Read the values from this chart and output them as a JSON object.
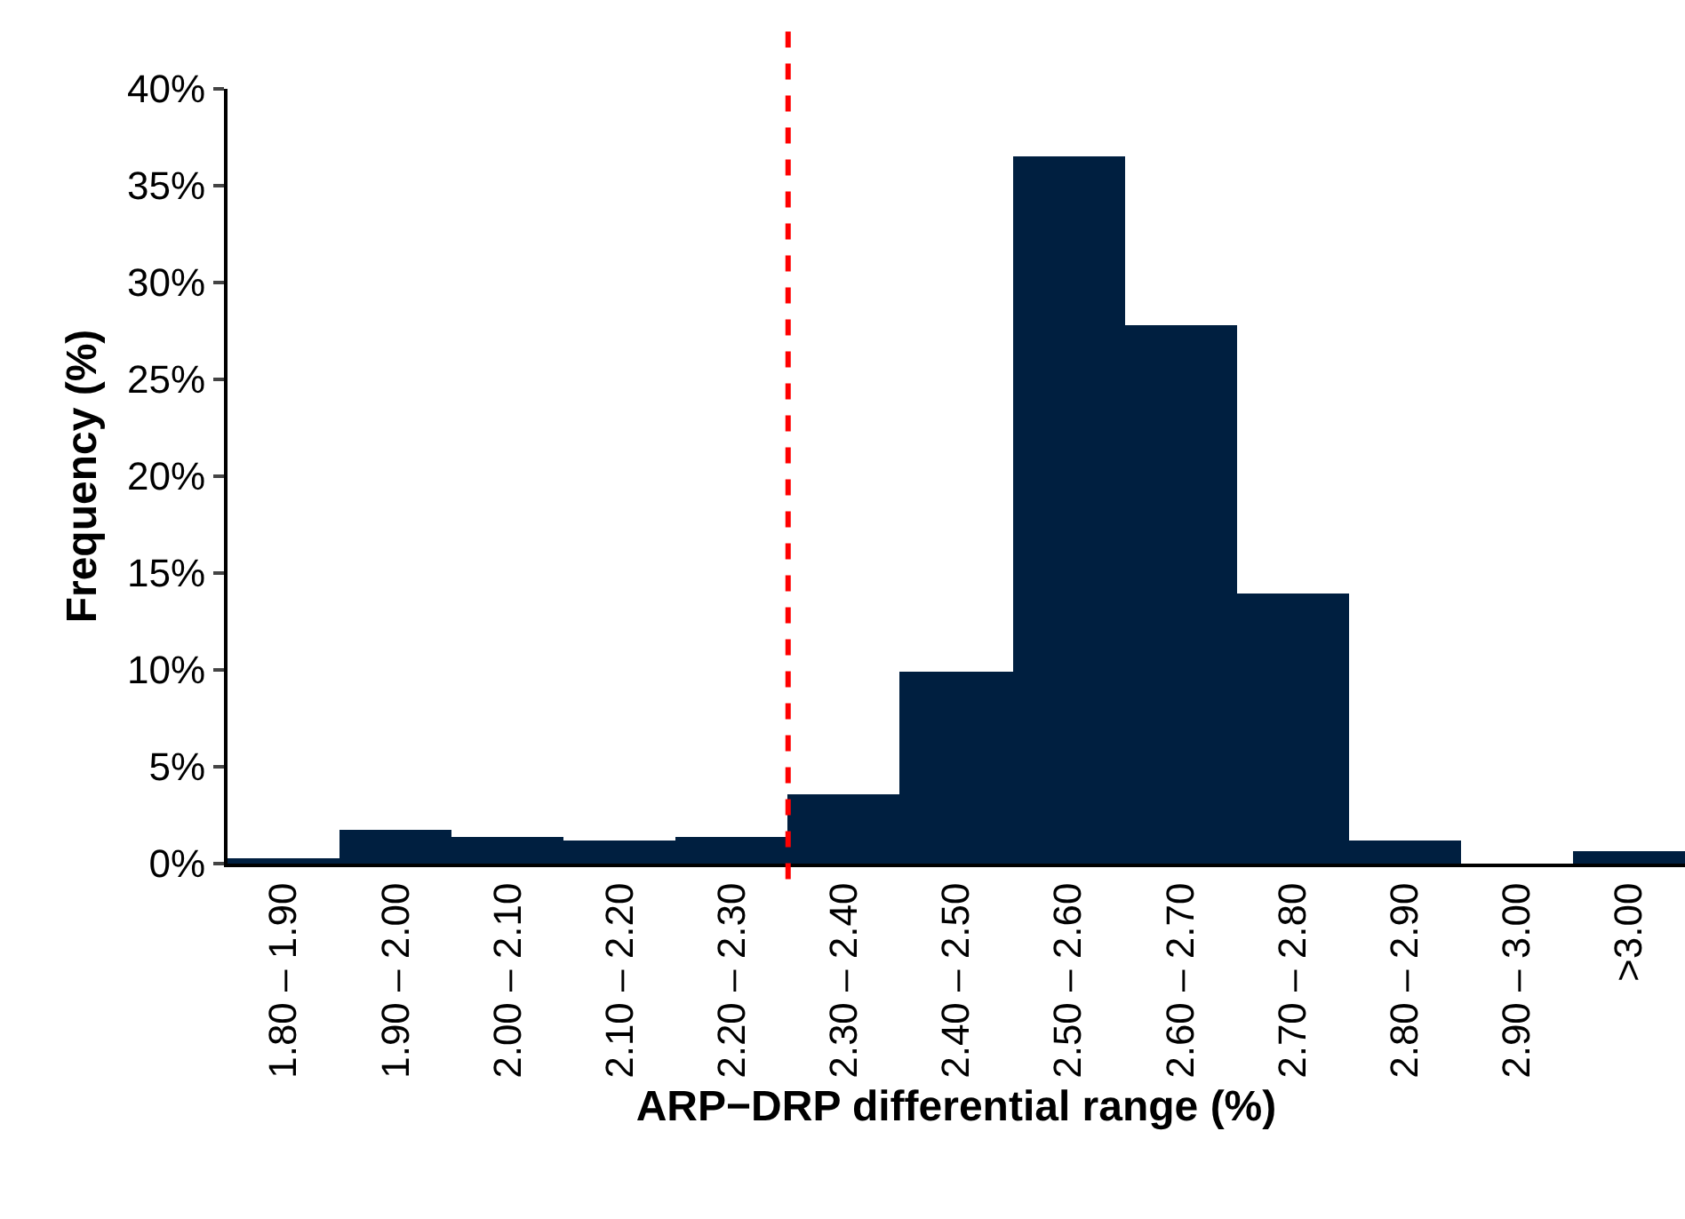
{
  "chart_data": {
    "type": "bar",
    "xlabel": "ARP−DRP differential range (%)",
    "ylabel": "Frequency (%)",
    "categories": [
      "1.80 – 1.90",
      "1.90 – 2.00",
      "2.00 – 2.10",
      "2.10 – 2.20",
      "2.20 – 2.30",
      "2.30 – 2.40",
      "2.40 – 2.50",
      "2.50 – 2.60",
      "2.60 – 2.70",
      "2.70 – 2.80",
      "2.80 – 2.90",
      "2.90 – 3.00",
      ">3.00"
    ],
    "values": [
      0.3,
      1.7,
      1.4,
      1.2,
      1.4,
      3.6,
      9.9,
      36.5,
      27.8,
      13.9,
      1.2,
      0,
      0.6
    ],
    "color": "#001f40",
    "ylim": [
      0,
      40
    ],
    "yticks": [
      {
        "value": 0,
        "label": "0%"
      },
      {
        "value": 5,
        "label": "5%"
      },
      {
        "value": 10,
        "label": "10%"
      },
      {
        "value": 15,
        "label": "15%"
      },
      {
        "value": 20,
        "label": "20%"
      },
      {
        "value": 25,
        "label": "25%"
      },
      {
        "value": 30,
        "label": "30%"
      },
      {
        "value": 35,
        "label": "35%"
      },
      {
        "value": 40,
        "label": "40%"
      }
    ],
    "ref_lines": [
      {
        "axis": "x",
        "value": "2.30 – 2.40",
        "color": "#ff0000",
        "line_style": "dashed"
      }
    ],
    "grid": false
  }
}
